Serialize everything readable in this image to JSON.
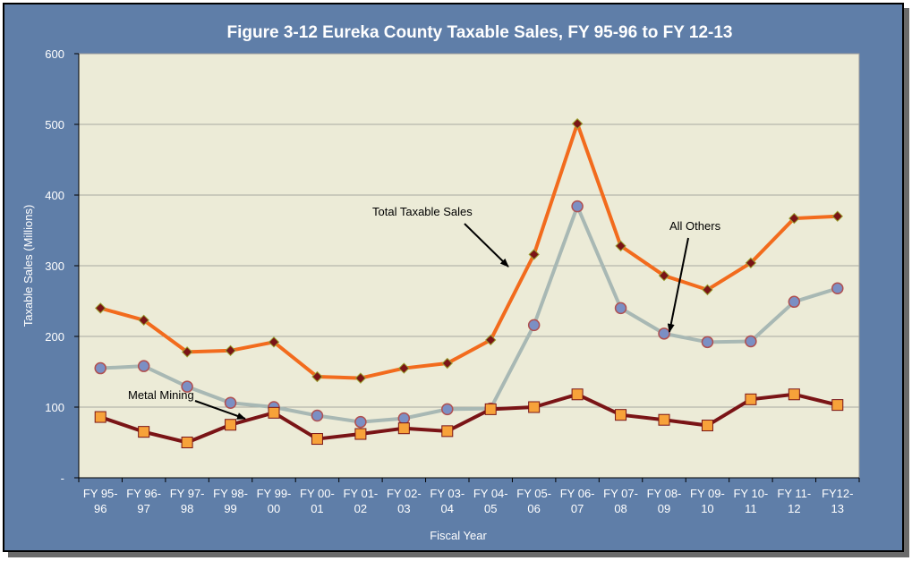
{
  "chart_data": {
    "type": "line",
    "title": "Figure 3-12 Eureka County Taxable Sales, FY 95-96 to FY 12-13",
    "xlabel": "Fiscal Year",
    "ylabel": "Taxable Sales (Millions)",
    "ylim": [
      0,
      600
    ],
    "yticks": [
      "-",
      "100",
      "200",
      "300",
      "400",
      "500",
      "600"
    ],
    "grid": true,
    "categories": [
      [
        "FY 95-",
        "96"
      ],
      [
        "FY 96-",
        "97"
      ],
      [
        "FY 97-",
        "98"
      ],
      [
        "FY 98-",
        "99"
      ],
      [
        "FY 99-",
        "00"
      ],
      [
        "FY 00-",
        "01"
      ],
      [
        "FY 01-",
        "02"
      ],
      [
        "FY 02-",
        "03"
      ],
      [
        "FY 03-",
        "04"
      ],
      [
        "FY 04-",
        "05"
      ],
      [
        "FY 05-",
        "06"
      ],
      [
        "FY 06-",
        "07"
      ],
      [
        "FY 07-",
        "08"
      ],
      [
        "FY 08-",
        "09"
      ],
      [
        "FY 09-",
        "10"
      ],
      [
        "FY 10-",
        "11"
      ],
      [
        "FY 11-",
        "12"
      ],
      [
        "FY12-",
        "13"
      ]
    ],
    "series": [
      {
        "name": "Total Taxable Sales",
        "color": "#f26b1d",
        "marker": "diamond",
        "marker_color": "#7a1416",
        "values": [
          240,
          223,
          178,
          180,
          192,
          143,
          141,
          155,
          162,
          195,
          316,
          501,
          328,
          286,
          266,
          304,
          367,
          370
        ]
      },
      {
        "name": "All Others",
        "color": "#a8b8b4",
        "marker": "circle",
        "marker_color": "#7b8fc4",
        "values": [
          155,
          158,
          129,
          106,
          100,
          88,
          79,
          84,
          97,
          98,
          216,
          384,
          240,
          204,
          192,
          193,
          249,
          268
        ]
      },
      {
        "name": "Metal Mining",
        "color": "#7a1416",
        "marker": "square",
        "marker_color": "#f7a23a",
        "values": [
          86,
          65,
          50,
          75,
          92,
          55,
          62,
          70,
          66,
          97,
          100,
          118,
          89,
          82,
          74,
          111,
          118,
          103
        ]
      }
    ],
    "annotations": [
      {
        "text": "Total Taxable Sales",
        "series": 0
      },
      {
        "text": "All Others",
        "series": 1
      },
      {
        "text": "Metal Mining",
        "series": 2
      }
    ]
  }
}
